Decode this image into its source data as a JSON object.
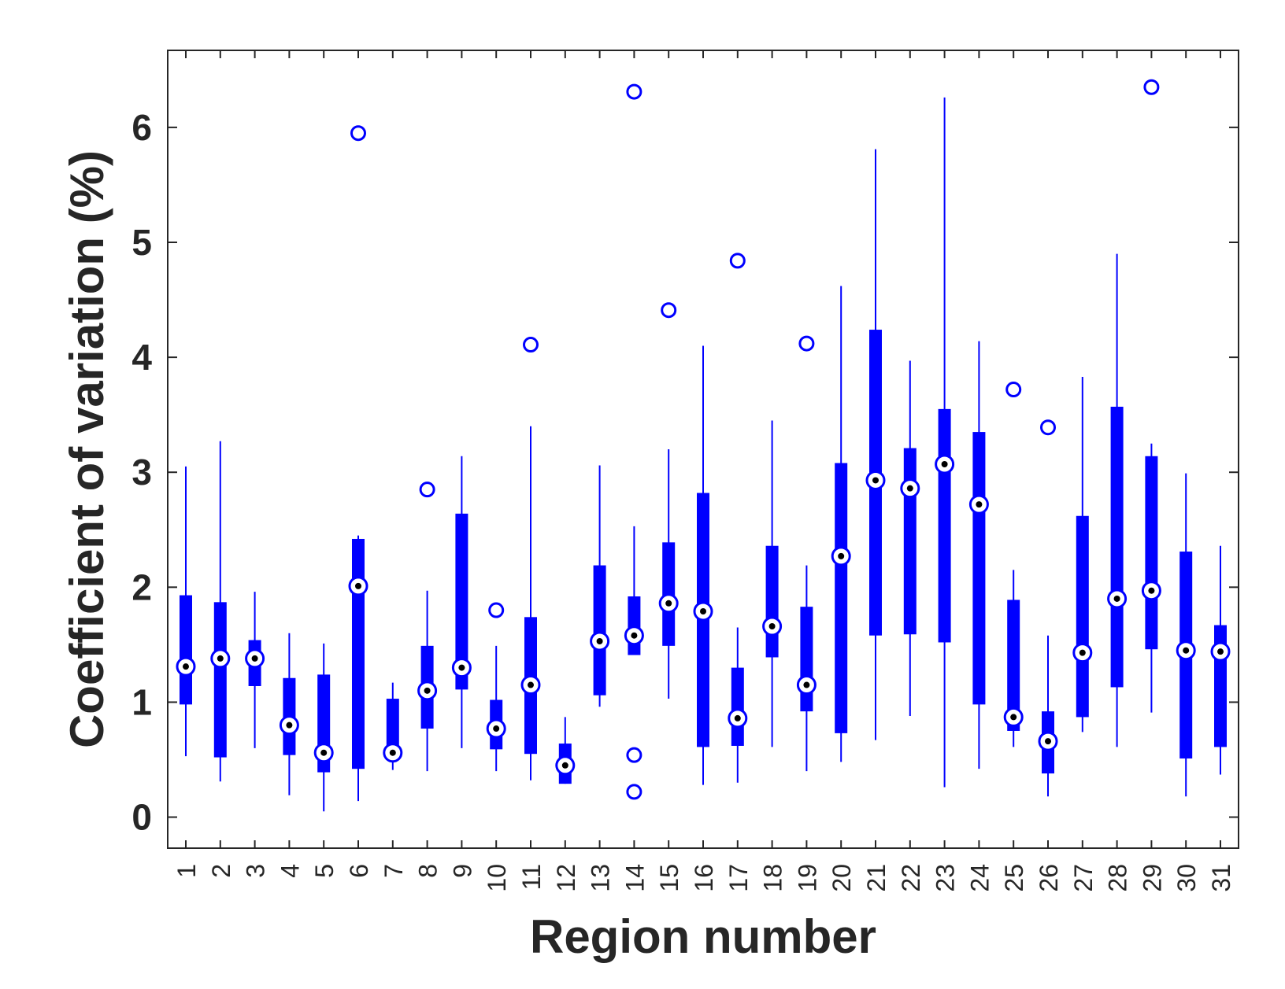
{
  "chart_data": {
    "type": "boxplot",
    "title": "",
    "xlabel": "Region number",
    "ylabel": "Coefficient of variation (%)",
    "ylim": [
      -0.27,
      6.67
    ],
    "yticks": [
      0,
      1,
      2,
      3,
      4,
      5,
      6
    ],
    "grid": false,
    "color": "#0000ff",
    "categories": [
      "1",
      "2",
      "3",
      "4",
      "5",
      "6",
      "7",
      "8",
      "9",
      "10",
      "11",
      "12",
      "13",
      "14",
      "15",
      "16",
      "17",
      "18",
      "19",
      "20",
      "21",
      "22",
      "23",
      "24",
      "25",
      "26",
      "27",
      "28",
      "29",
      "30",
      "31"
    ],
    "boxes": [
      {
        "q1": 0.98,
        "median": 1.31,
        "q3": 1.93,
        "whisker_low": 0.53,
        "whisker_high": 3.05,
        "outliers": []
      },
      {
        "q1": 0.52,
        "median": 1.38,
        "q3": 1.87,
        "whisker_low": 0.31,
        "whisker_high": 3.27,
        "outliers": []
      },
      {
        "q1": 1.14,
        "median": 1.38,
        "q3": 1.54,
        "whisker_low": 0.6,
        "whisker_high": 1.96,
        "outliers": []
      },
      {
        "q1": 0.54,
        "median": 0.8,
        "q3": 1.21,
        "whisker_low": 0.19,
        "whisker_high": 1.6,
        "outliers": []
      },
      {
        "q1": 0.39,
        "median": 0.56,
        "q3": 1.24,
        "whisker_low": 0.05,
        "whisker_high": 1.51,
        "outliers": []
      },
      {
        "q1": 0.42,
        "median": 2.01,
        "q3": 2.42,
        "whisker_low": 0.14,
        "whisker_high": 2.45,
        "outliers": [
          5.95
        ]
      },
      {
        "q1": 0.51,
        "median": 0.56,
        "q3": 1.03,
        "whisker_low": 0.41,
        "whisker_high": 1.17,
        "outliers": []
      },
      {
        "q1": 0.77,
        "median": 1.1,
        "q3": 1.49,
        "whisker_low": 0.4,
        "whisker_high": 1.97,
        "outliers": [
          2.85
        ]
      },
      {
        "q1": 1.11,
        "median": 1.3,
        "q3": 2.64,
        "whisker_low": 0.6,
        "whisker_high": 3.14,
        "outliers": []
      },
      {
        "q1": 0.59,
        "median": 0.77,
        "q3": 1.02,
        "whisker_low": 0.4,
        "whisker_high": 1.49,
        "outliers": [
          1.8
        ]
      },
      {
        "q1": 0.55,
        "median": 1.15,
        "q3": 1.74,
        "whisker_low": 0.32,
        "whisker_high": 3.4,
        "outliers": [
          4.11
        ]
      },
      {
        "q1": 0.29,
        "median": 0.45,
        "q3": 0.64,
        "whisker_low": 0.29,
        "whisker_high": 0.87,
        "outliers": []
      },
      {
        "q1": 1.06,
        "median": 1.53,
        "q3": 2.19,
        "whisker_low": 0.96,
        "whisker_high": 3.06,
        "outliers": []
      },
      {
        "q1": 1.41,
        "median": 1.58,
        "q3": 1.92,
        "whisker_low": 1.41,
        "whisker_high": 2.53,
        "outliers": [
          6.31,
          0.54,
          0.22
        ]
      },
      {
        "q1": 1.49,
        "median": 1.86,
        "q3": 2.39,
        "whisker_low": 1.03,
        "whisker_high": 3.2,
        "outliers": [
          4.41
        ]
      },
      {
        "q1": 0.61,
        "median": 1.79,
        "q3": 2.82,
        "whisker_low": 0.28,
        "whisker_high": 4.1,
        "outliers": []
      },
      {
        "q1": 0.62,
        "median": 0.86,
        "q3": 1.3,
        "whisker_low": 0.3,
        "whisker_high": 1.65,
        "outliers": [
          4.84
        ]
      },
      {
        "q1": 1.39,
        "median": 1.66,
        "q3": 2.36,
        "whisker_low": 0.61,
        "whisker_high": 3.45,
        "outliers": []
      },
      {
        "q1": 0.92,
        "median": 1.15,
        "q3": 1.83,
        "whisker_low": 0.4,
        "whisker_high": 2.19,
        "outliers": [
          4.12
        ]
      },
      {
        "q1": 0.73,
        "median": 2.27,
        "q3": 3.08,
        "whisker_low": 0.48,
        "whisker_high": 4.62,
        "outliers": []
      },
      {
        "q1": 1.58,
        "median": 2.93,
        "q3": 4.24,
        "whisker_low": 0.67,
        "whisker_high": 5.81,
        "outliers": []
      },
      {
        "q1": 1.59,
        "median": 2.86,
        "q3": 3.21,
        "whisker_low": 0.88,
        "whisker_high": 3.97,
        "outliers": []
      },
      {
        "q1": 1.52,
        "median": 3.07,
        "q3": 3.55,
        "whisker_low": 0.26,
        "whisker_high": 6.26,
        "outliers": []
      },
      {
        "q1": 0.98,
        "median": 2.72,
        "q3": 3.35,
        "whisker_low": 0.42,
        "whisker_high": 4.14,
        "outliers": []
      },
      {
        "q1": 0.75,
        "median": 0.87,
        "q3": 1.89,
        "whisker_low": 0.61,
        "whisker_high": 2.15,
        "outliers": [
          3.72
        ]
      },
      {
        "q1": 0.38,
        "median": 0.66,
        "q3": 0.92,
        "whisker_low": 0.18,
        "whisker_high": 1.58,
        "outliers": [
          3.39
        ]
      },
      {
        "q1": 0.87,
        "median": 1.43,
        "q3": 2.62,
        "whisker_low": 0.74,
        "whisker_high": 3.83,
        "outliers": []
      },
      {
        "q1": 1.13,
        "median": 1.9,
        "q3": 3.57,
        "whisker_low": 0.61,
        "whisker_high": 4.9,
        "outliers": []
      },
      {
        "q1": 1.46,
        "median": 1.97,
        "q3": 3.14,
        "whisker_low": 0.91,
        "whisker_high": 3.25,
        "outliers": [
          6.35
        ]
      },
      {
        "q1": 0.51,
        "median": 1.45,
        "q3": 2.31,
        "whisker_low": 0.18,
        "whisker_high": 2.99,
        "outliers": []
      },
      {
        "q1": 0.61,
        "median": 1.44,
        "q3": 1.67,
        "whisker_low": 0.37,
        "whisker_high": 2.36,
        "outliers": []
      }
    ]
  }
}
